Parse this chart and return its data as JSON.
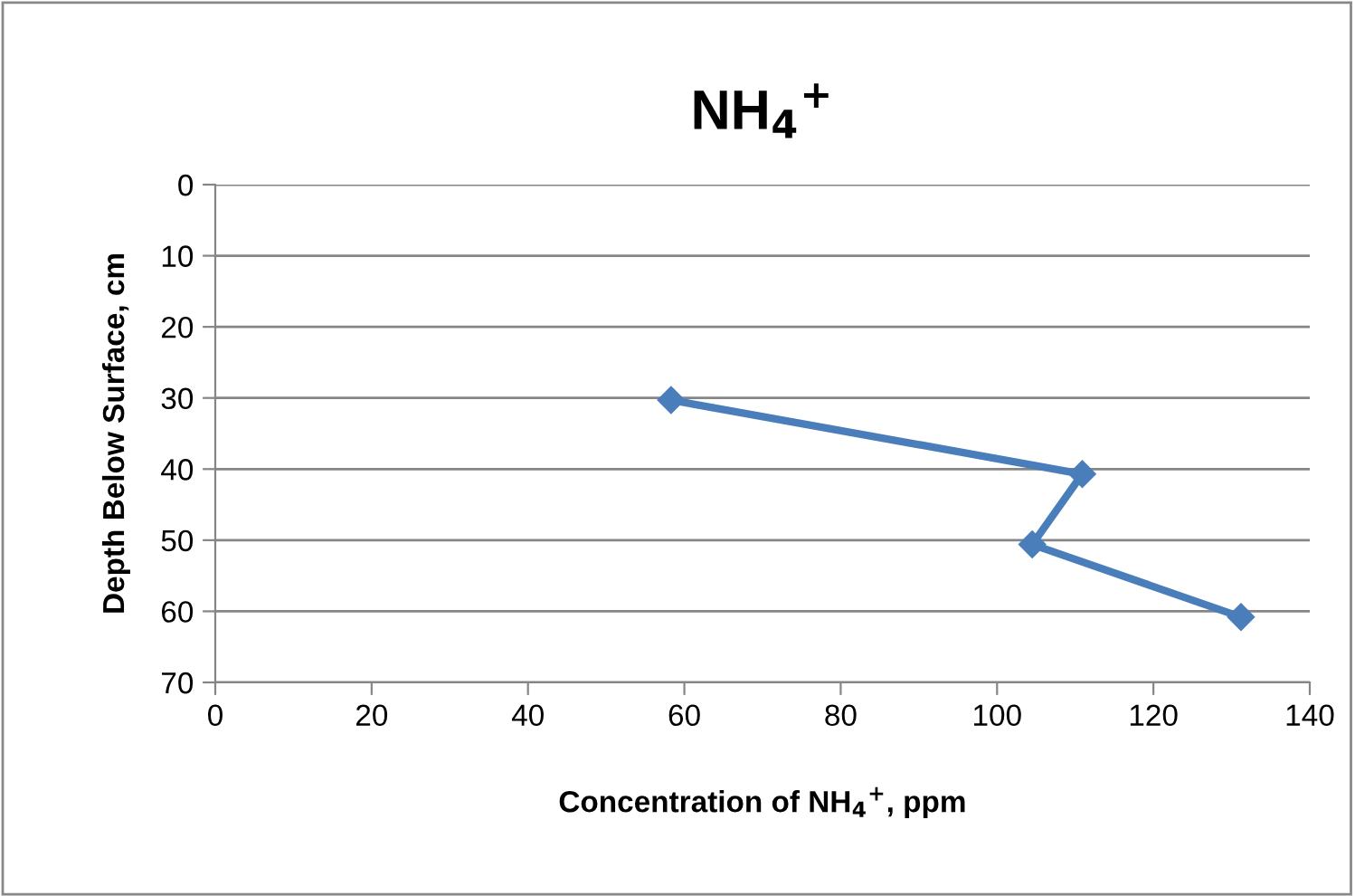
{
  "chart_data": {
    "type": "line",
    "title": "NH$_{4}$$^{+}$",
    "xlabel": "Concentration of NH$_{4}$$^{+}$, ppm",
    "ylabel": "Depth Below Surface, cm",
    "x": [
      58.3,
      110.9,
      104.5,
      131.2
    ],
    "series": [
      {
        "color": "#4a7ebb",
        "values": [
          30.3,
          40.7,
          50.6,
          60.8
        ]
      }
    ],
    "xlim": [
      0,
      140
    ],
    "xticks": [
      0,
      20,
      40,
      60,
      80,
      100,
      120,
      140
    ],
    "ylim": [
      70,
      0
    ],
    "yticks": [
      0,
      10,
      20,
      30,
      40,
      50,
      60,
      70
    ],
    "grid": "y",
    "marker": "diamond",
    "line_style": "solid",
    "legend": false
  }
}
